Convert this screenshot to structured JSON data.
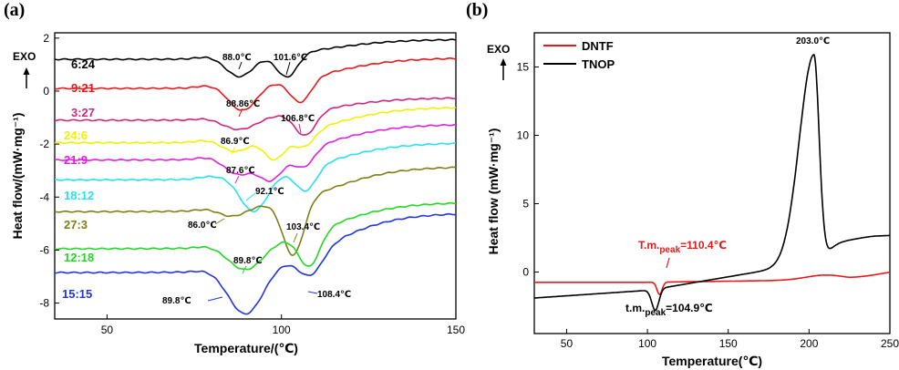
{
  "chart_data": [
    {
      "panel_label": "(a)",
      "type": "line",
      "xlabel": "Temperature/(℃)",
      "ylabel": "Heat flow/(mW·mg⁻¹)",
      "exo_label": "EXO",
      "xlim": [
        35,
        150
      ],
      "ylim": [
        -8.6,
        2.2
      ],
      "xticks": [
        50,
        100,
        150
      ],
      "yticks": [
        2,
        0,
        -2,
        -4,
        -6,
        -8
      ],
      "series": [
        {
          "name": "6:24",
          "color": "#000000",
          "baseline": 1.2,
          "end": 1.95,
          "peaks": [
            [
              88.0,
              0.8,
              4.0
            ],
            [
              101.6,
              0.9,
              3.0
            ]
          ]
        },
        {
          "name": "9:21",
          "color": "#e8191a",
          "baseline": 0.1,
          "end": 1.25,
          "peaks": [
            [
              88.86,
              1.0,
              4.0
            ],
            [
              105.5,
              0.9,
              3.0
            ]
          ]
        },
        {
          "name": "3:27",
          "color": "#d0257b",
          "baseline": -1.1,
          "end": -0.25,
          "peaks": [
            [
              88.0,
              0.5,
              5.0
            ],
            [
              106.8,
              0.9,
              3.0
            ]
          ]
        },
        {
          "name": "24:6",
          "color": "#f0f000",
          "baseline": -1.95,
          "end": -0.6,
          "peaks": [
            [
              86.9,
              0.5,
              4.0
            ],
            [
              98.0,
              0.9,
              3.0
            ],
            [
              106.5,
              0.6,
              3.0
            ]
          ]
        },
        {
          "name": "21:9",
          "color": "#e020e0",
          "baseline": -2.6,
          "end": -1.25,
          "peaks": [
            [
              87.6,
              0.7,
              4.0
            ],
            [
              97.0,
              1.0,
              3.5
            ],
            [
              106.5,
              0.7,
              3.0
            ]
          ]
        },
        {
          "name": "18:12",
          "color": "#28e0f0",
          "baseline": -3.35,
          "end": -1.95,
          "peaks": [
            [
              92.1,
              1.4,
              4.0
            ],
            [
              107.0,
              0.9,
              3.0
            ]
          ]
        },
        {
          "name": "27:3",
          "color": "#7f7f15",
          "baseline": -4.55,
          "end": -2.85,
          "peaks": [
            [
              86.0,
              0.35,
              4.0
            ],
            [
              103.4,
              2.1,
              3.0
            ]
          ]
        },
        {
          "name": "12:18",
          "color": "#22d822",
          "baseline": -5.95,
          "end": -4.2,
          "peaks": [
            [
              89.8,
              1.0,
              5.0
            ],
            [
              108.0,
              1.3,
              3.0
            ]
          ]
        },
        {
          "name": "15:15",
          "color": "#2035e0",
          "baseline": -6.85,
          "end": -4.6,
          "peaks": [
            [
              89.8,
              1.8,
              5.0
            ],
            [
              108.4,
              0.9,
              3.5
            ]
          ]
        }
      ],
      "annotations": [
        "88.0℃",
        "101.6℃",
        "88.86℃",
        "106.8℃",
        "86.9℃",
        "87.6℃",
        "92.1℃",
        "86.0℃",
        "103.4℃",
        "89.8℃",
        "89.8℃",
        "108.4℃"
      ]
    },
    {
      "panel_label": "(b)",
      "type": "line",
      "xlabel": "Temperature(℃)",
      "ylabel": "Heat flow (mW·mg⁻¹)",
      "exo_label": "EXO",
      "xlim": [
        30,
        250
      ],
      "ylim": [
        -4.5,
        17.5
      ],
      "xticks": [
        50,
        100,
        150,
        200,
        250
      ],
      "yticks": [
        15,
        10,
        5,
        0
      ],
      "series": [
        {
          "name": "DNTF",
          "color": "#e8191a"
        },
        {
          "name": "TNOP",
          "color": "#000000"
        }
      ],
      "annotations": {
        "tnop_peak": "203.0℃",
        "dntf_peak_prefix": "T.m.",
        "dntf_peak_sub": "peak",
        "dntf_peak_value": "=110.4℃",
        "tnop_melt_prefix": "t.m.",
        "tnop_melt_sub": "peak",
        "tnop_melt_value": "=104.9℃"
      }
    }
  ]
}
